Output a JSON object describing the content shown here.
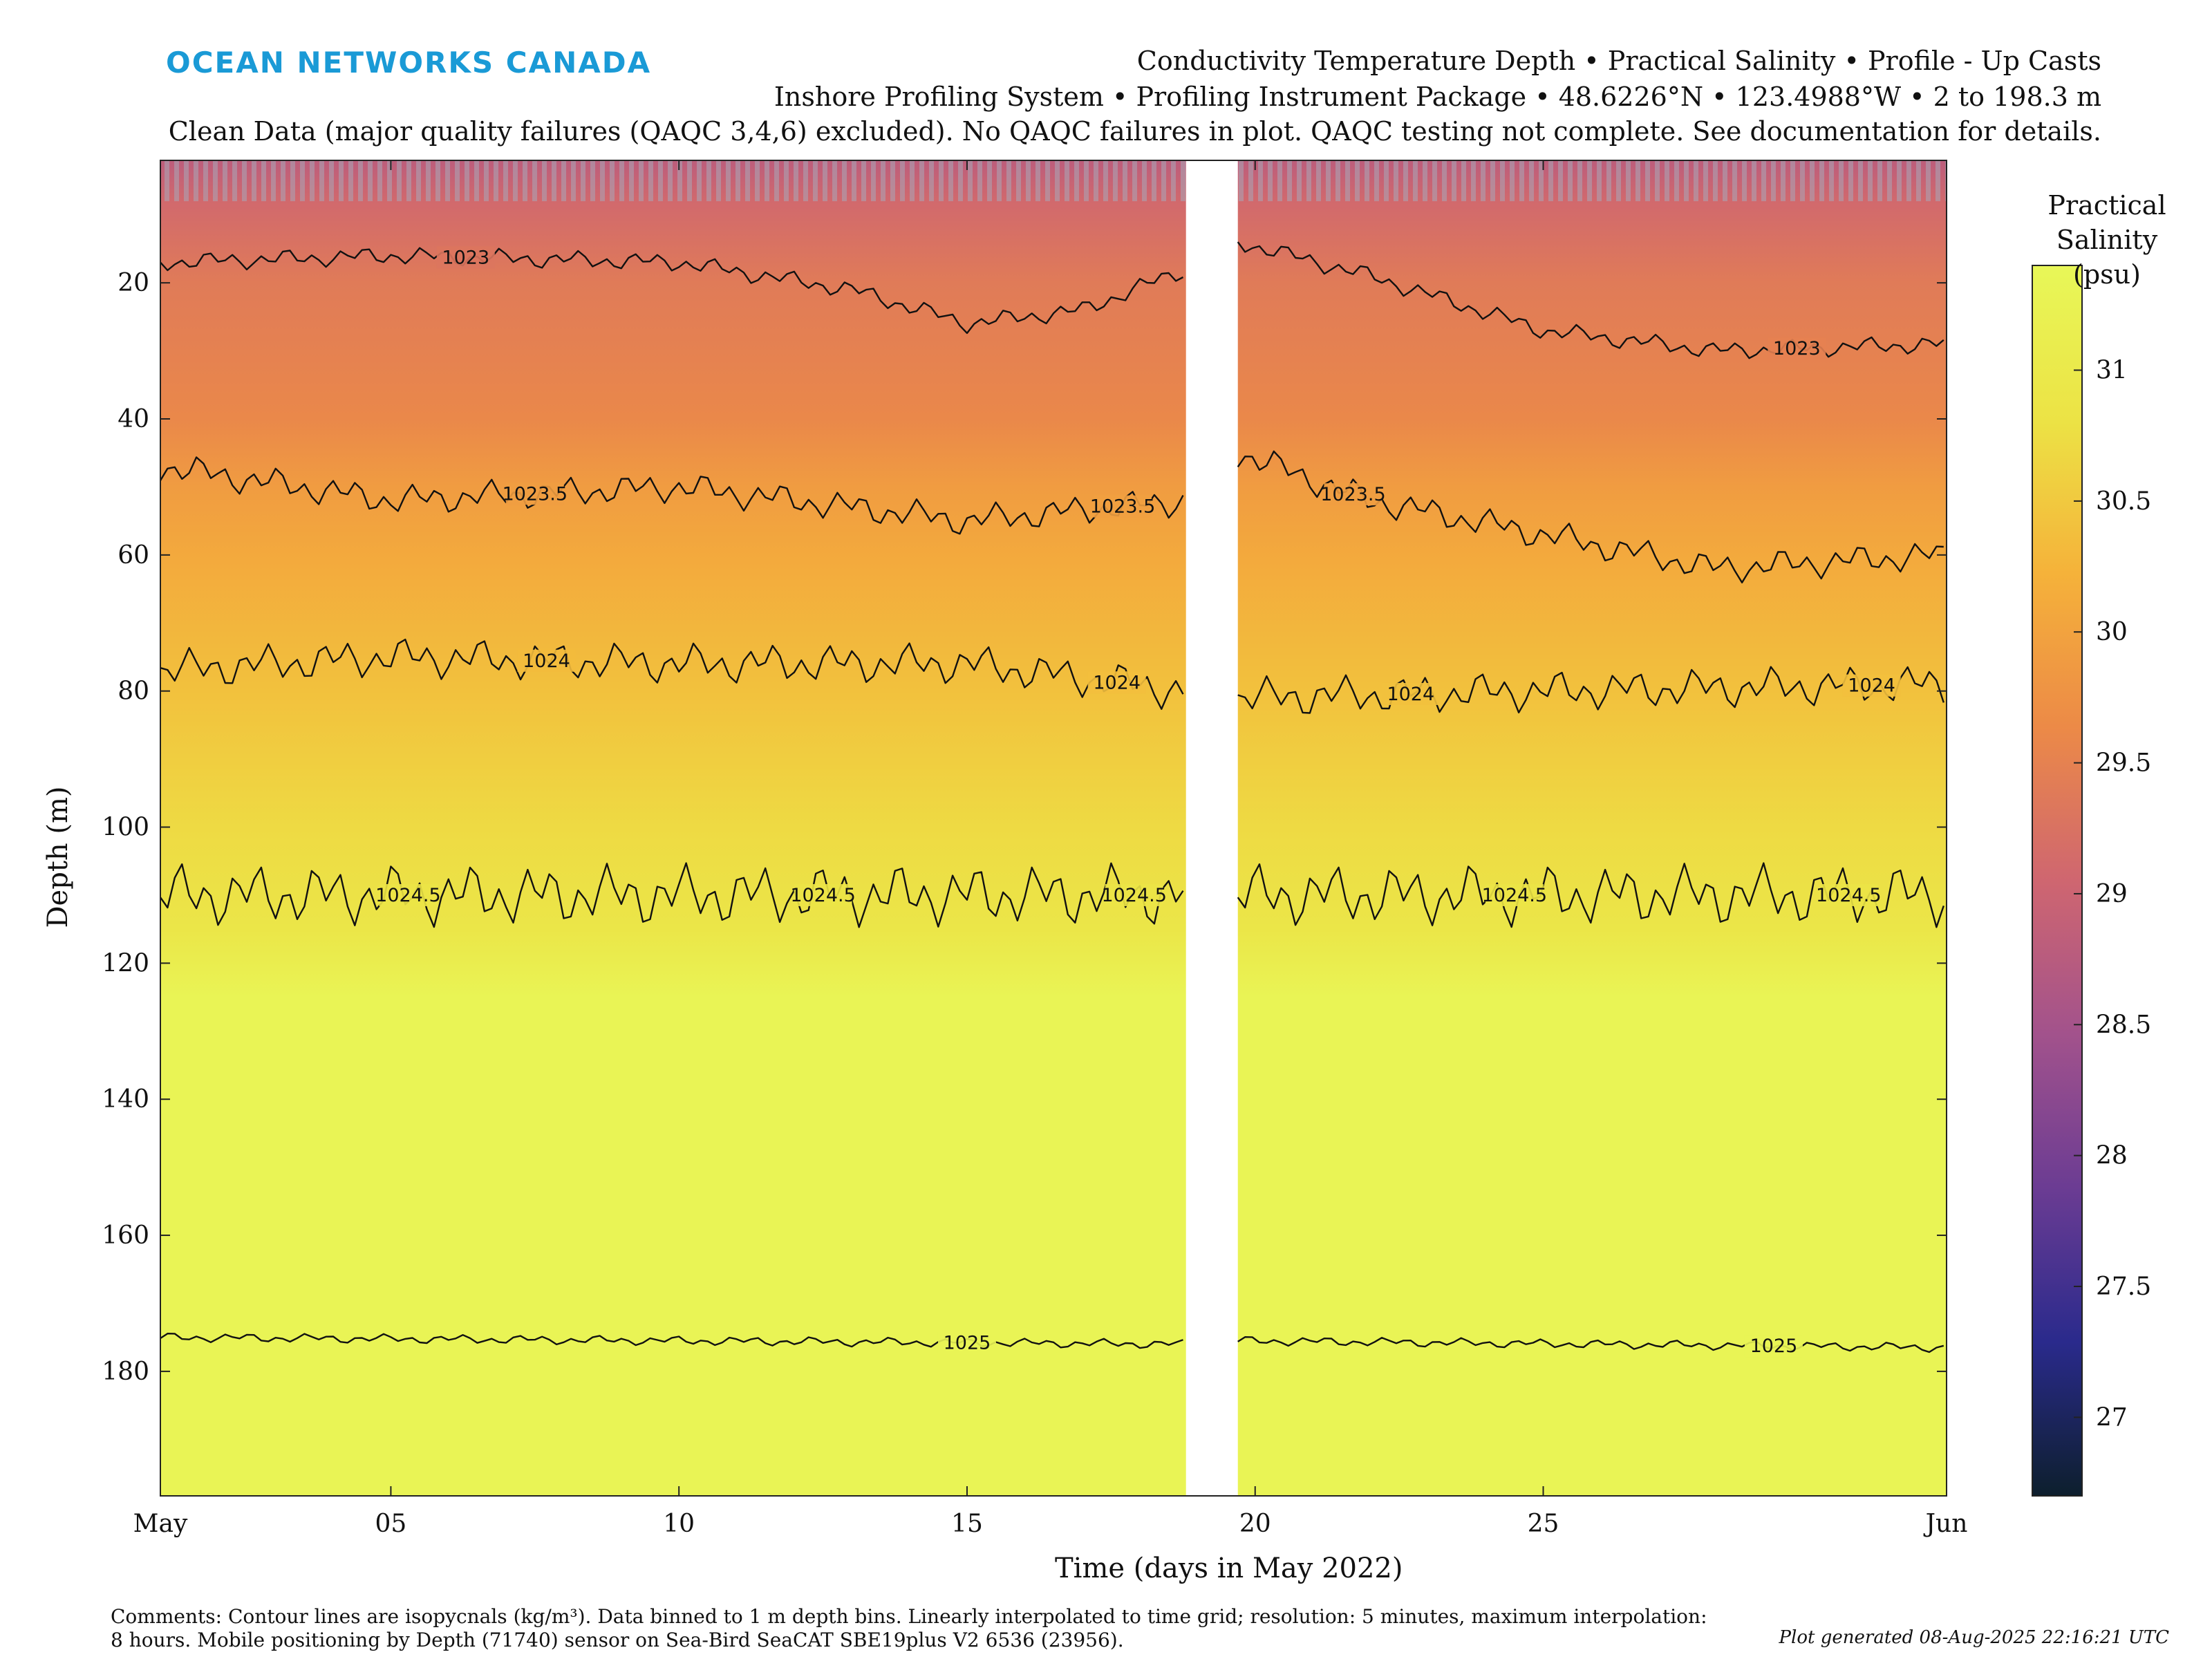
{
  "header": {
    "logo_text": "OCEAN NETWORKS CANADA",
    "line1": "Conductivity Temperature Depth • Practical Salinity • Profile - Up Casts",
    "line2": "Inshore Profiling System • Profiling Instrument Package • 48.6226°N • 123.4988°W • 2 to 198.3 m",
    "line3": "Clean Data (major quality failures (QAQC 3,4,6) excluded). No QAQC failures in plot. QAQC testing not complete. See documentation for details."
  },
  "footer": {
    "comments_line1": "Comments: Contour lines are isopycnals (kg/m³). Data binned to 1 m depth bins. Linearly interpolated to time grid; resolution: 5 minutes, maximum interpolation:",
    "comments_line2": "8 hours. Mobile positioning by Depth (71740) sensor on Sea-Bird SeaCAT SBE19plus V2 6536 (23956).",
    "generated": "Plot generated 08-Aug-2025 22:16:21 UTC"
  },
  "chart_data": {
    "type": "heatmap",
    "xlabel": "Time (days in May 2022)",
    "ylabel": "Depth (m)",
    "x_ticks": [
      {
        "day": 1,
        "label": "May"
      },
      {
        "day": 5,
        "label": "05"
      },
      {
        "day": 10,
        "label": "10"
      },
      {
        "day": 15,
        "label": "15"
      },
      {
        "day": 20,
        "label": "20"
      },
      {
        "day": 25,
        "label": "25"
      },
      {
        "day": 32,
        "label": "Jun"
      }
    ],
    "xlim_days": [
      1,
      32
    ],
    "ylim_depth": [
      2,
      198.3
    ],
    "y_reversed": true,
    "y_ticks": [
      20,
      40,
      60,
      80,
      100,
      120,
      140,
      160,
      180
    ],
    "data_gap_days": [
      18.8,
      19.7
    ],
    "colorbar": {
      "title": "Practical Salinity (psu)",
      "range": [
        26.7,
        31.4
      ],
      "ticks": [
        27,
        27.5,
        28,
        28.5,
        29,
        29.5,
        30,
        30.5,
        31
      ],
      "colors": [
        "#0d1f2d",
        "#2a2a8c",
        "#6b3c93",
        "#a2528c",
        "#cf6670",
        "#ec8a47",
        "#f5b23a",
        "#ece345",
        "#e8f758"
      ]
    },
    "salinity_profile": [
      {
        "depth": 2,
        "salinity": 28.8
      },
      {
        "depth": 8,
        "salinity": 29.1
      },
      {
        "depth": 20,
        "salinity": 29.4
      },
      {
        "depth": 40,
        "salinity": 29.6
      },
      {
        "depth": 50,
        "salinity": 29.9
      },
      {
        "depth": 60,
        "salinity": 30.1
      },
      {
        "depth": 80,
        "salinity": 30.4
      },
      {
        "depth": 100,
        "salinity": 30.7
      },
      {
        "depth": 115,
        "salinity": 30.9
      },
      {
        "depth": 125,
        "salinity": 31.3
      },
      {
        "depth": 198.3,
        "salinity": 31.3
      }
    ],
    "isopycnals": [
      {
        "label": "1023",
        "points": [
          [
            1,
            17
          ],
          [
            5,
            16
          ],
          [
            10,
            17
          ],
          [
            13,
            21
          ],
          [
            15,
            26
          ],
          [
            17,
            24
          ],
          [
            18.8,
            18
          ],
          [
            19.7,
            14
          ],
          [
            22,
            19
          ],
          [
            25,
            27
          ],
          [
            28,
            30
          ],
          [
            32,
            29
          ]
        ],
        "label_at_days": [
          6.3,
          29.4
        ]
      },
      {
        "label": "1023.5",
        "points": [
          [
            1,
            47
          ],
          [
            5,
            52
          ],
          [
            10,
            50
          ],
          [
            15,
            55
          ],
          [
            18.8,
            52
          ],
          [
            19.7,
            45
          ],
          [
            22,
            52
          ],
          [
            25,
            57
          ],
          [
            28,
            62
          ],
          [
            32,
            60
          ]
        ],
        "label_at_days": [
          7.5,
          17.7,
          21.7
        ]
      },
      {
        "label": "1024",
        "points": [
          [
            1,
            77
          ],
          [
            5,
            75
          ],
          [
            10,
            76
          ],
          [
            15,
            76
          ],
          [
            18.8,
            80
          ],
          [
            19.7,
            81
          ],
          [
            25,
            80
          ],
          [
            32,
            79
          ]
        ],
        "label_at_days": [
          7.7,
          17.6,
          22.7,
          30.7
        ]
      },
      {
        "label": "1024.5",
        "points": [
          [
            1,
            110
          ],
          [
            5,
            110
          ],
          [
            10,
            110
          ],
          [
            15,
            110
          ],
          [
            18.8,
            110
          ],
          [
            19.7,
            110
          ],
          [
            25,
            110
          ],
          [
            32,
            110
          ]
        ],
        "label_at_days": [
          5.3,
          12.5,
          17.9,
          24.5,
          30.3
        ]
      },
      {
        "label": "1025",
        "points": [
          [
            1,
            175
          ],
          [
            10,
            175.5
          ],
          [
            18.8,
            176
          ],
          [
            19.7,
            175.5
          ],
          [
            32,
            176.5
          ]
        ],
        "label_at_days": [
          15,
          29
        ]
      }
    ]
  }
}
